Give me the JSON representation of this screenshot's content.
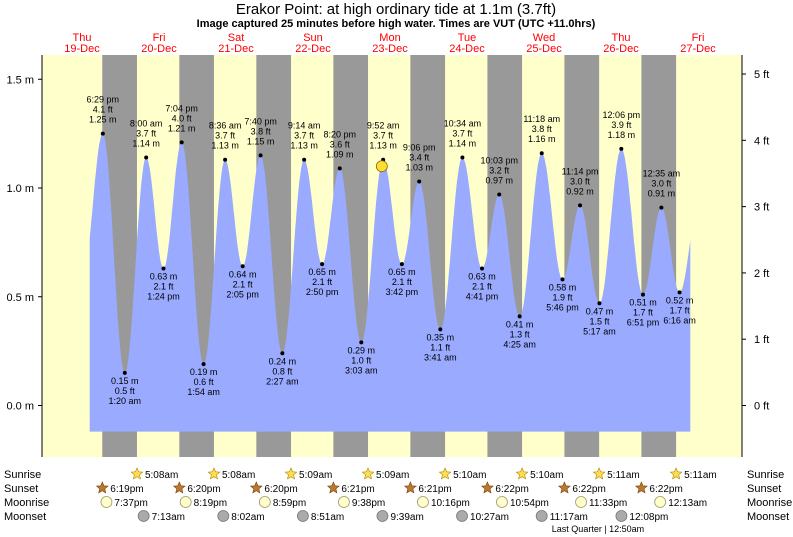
{
  "title": "Erakor Point: at high  ordinary tide at 1.1m (3.7ft)",
  "subtitle": "Image captured 25 minutes before high water. Times are VUT (UTC +11.0hrs)",
  "colors": {
    "day": "#ffffcc",
    "night": "#999999",
    "tide": "#99aaff",
    "day_label": "#ff0000",
    "current_marker": "#ffdd33"
  },
  "days": [
    {
      "name": "Thu",
      "date": "19-Dec"
    },
    {
      "name": "Fri",
      "date": "20-Dec"
    },
    {
      "name": "Sat",
      "date": "21-Dec"
    },
    {
      "name": "Sun",
      "date": "22-Dec"
    },
    {
      "name": "Mon",
      "date": "23-Dec"
    },
    {
      "name": "Tue",
      "date": "24-Dec"
    },
    {
      "name": "Wed",
      "date": "25-Dec"
    },
    {
      "name": "Thu",
      "date": "26-Dec"
    },
    {
      "name": "Fri",
      "date": "27-Dec"
    }
  ],
  "chart_data": {
    "type": "area",
    "x_unit": "days",
    "y_left": {
      "unit": "m",
      "min": -0.2,
      "max": 1.6,
      "ticks": [
        0.0,
        0.5,
        1.0,
        1.5
      ],
      "labels": [
        "0.0 m",
        "0.5 m",
        "1.0 m",
        "1.5 m"
      ]
    },
    "y_right": {
      "unit": "ft",
      "ticks": [
        0,
        1,
        2,
        3,
        4,
        5
      ],
      "labels": [
        "0 ft",
        "1 ft",
        "2 ft",
        "3 ft",
        "4 ft",
        "5 ft"
      ]
    },
    "tides": [
      {
        "day": 0,
        "time": "6:29 pm",
        "ft": "4.1 ft",
        "m": 1.25,
        "m_label": "1.25 m",
        "type": "high"
      },
      {
        "day": 1,
        "time": "1:20 am",
        "ft": "0.5 ft",
        "m": 0.15,
        "m_label": "0.15 m",
        "type": "low"
      },
      {
        "day": 1,
        "time": "8:00 am",
        "ft": "3.7 ft",
        "m": 1.14,
        "m_label": "1.14 m",
        "type": "high"
      },
      {
        "day": 1,
        "time": "1:24 pm",
        "ft": "2.1 ft",
        "m": 0.63,
        "m_label": "0.63 m",
        "type": "low"
      },
      {
        "day": 1,
        "time": "7:04 pm",
        "ft": "4.0 ft",
        "m": 1.21,
        "m_label": "1.21 m",
        "type": "high"
      },
      {
        "day": 2,
        "time": "1:54 am",
        "ft": "0.6 ft",
        "m": 0.19,
        "m_label": "0.19 m",
        "type": "low"
      },
      {
        "day": 2,
        "time": "8:36 am",
        "ft": "3.7 ft",
        "m": 1.13,
        "m_label": "1.13 m",
        "type": "high"
      },
      {
        "day": 2,
        "time": "2:05 pm",
        "ft": "2.1 ft",
        "m": 0.64,
        "m_label": "0.64 m",
        "type": "low"
      },
      {
        "day": 2,
        "time": "7:40 pm",
        "ft": "3.8 ft",
        "m": 1.15,
        "m_label": "1.15 m",
        "type": "high"
      },
      {
        "day": 3,
        "time": "2:27 am",
        "ft": "0.8 ft",
        "m": 0.24,
        "m_label": "0.24 m",
        "type": "low"
      },
      {
        "day": 3,
        "time": "9:14 am",
        "ft": "3.7 ft",
        "m": 1.13,
        "m_label": "1.13 m",
        "type": "high"
      },
      {
        "day": 3,
        "time": "2:50 pm",
        "ft": "2.1 ft",
        "m": 0.65,
        "m_label": "0.65 m",
        "type": "low"
      },
      {
        "day": 3,
        "time": "8:20 pm",
        "ft": "3.6 ft",
        "m": 1.09,
        "m_label": "1.09 m",
        "type": "high"
      },
      {
        "day": 4,
        "time": "3:03 am",
        "ft": "1.0 ft",
        "m": 0.29,
        "m_label": "0.29 m",
        "type": "low"
      },
      {
        "day": 4,
        "time": "9:52 am",
        "ft": "3.7 ft",
        "m": 1.13,
        "m_label": "1.13 m",
        "type": "high"
      },
      {
        "day": 4,
        "time": "3:42 pm",
        "ft": "2.1 ft",
        "m": 0.65,
        "m_label": "0.65 m",
        "type": "low"
      },
      {
        "day": 4,
        "time": "9:06 pm",
        "ft": "3.4 ft",
        "m": 1.03,
        "m_label": "1.03 m",
        "type": "high"
      },
      {
        "day": 5,
        "time": "3:41 am",
        "ft": "1.1 ft",
        "m": 0.35,
        "m_label": "0.35 m",
        "type": "low"
      },
      {
        "day": 5,
        "time": "10:34 am",
        "ft": "3.7 ft",
        "m": 1.14,
        "m_label": "1.14 m",
        "type": "high"
      },
      {
        "day": 5,
        "time": "4:41 pm",
        "ft": "2.1 ft",
        "m": 0.63,
        "m_label": "0.63 m",
        "type": "low"
      },
      {
        "day": 5,
        "time": "10:03 pm",
        "ft": "3.2 ft",
        "m": 0.97,
        "m_label": "0.97 m",
        "type": "high"
      },
      {
        "day": 6,
        "time": "4:25 am",
        "ft": "1.3 ft",
        "m": 0.41,
        "m_label": "0.41 m",
        "type": "low"
      },
      {
        "day": 6,
        "time": "11:18 am",
        "ft": "3.8 ft",
        "m": 1.16,
        "m_label": "1.16 m",
        "type": "high"
      },
      {
        "day": 6,
        "time": "5:46 pm",
        "ft": "1.9 ft",
        "m": 0.58,
        "m_label": "0.58 m",
        "type": "low"
      },
      {
        "day": 6,
        "time": "11:14 pm",
        "ft": "3.0 ft",
        "m": 0.92,
        "m_label": "0.92 m",
        "type": "high"
      },
      {
        "day": 7,
        "time": "5:17 am",
        "ft": "1.5 ft",
        "m": 0.47,
        "m_label": "0.47 m",
        "type": "low"
      },
      {
        "day": 7,
        "time": "12:06 pm",
        "ft": "3.9 ft",
        "m": 1.18,
        "m_label": "1.18 m",
        "type": "high"
      },
      {
        "day": 7,
        "time": "6:51 pm",
        "ft": "1.7 ft",
        "m": 0.51,
        "m_label": "0.51 m",
        "type": "low"
      },
      {
        "day": 8,
        "time": "12:35 am",
        "ft": "3.0 ft",
        "m": 0.91,
        "m_label": "0.91 m",
        "type": "high"
      },
      {
        "day": 8,
        "time": "6:16 am",
        "ft": "1.7 ft",
        "m": 0.52,
        "m_label": "0.52 m",
        "type": "low"
      }
    ],
    "current": {
      "day": 4,
      "time": "9:27 am",
      "m": 1.1
    }
  },
  "astro": {
    "labels": {
      "sunrise": "Sunrise",
      "sunset": "Sunset",
      "moonrise": "Moonrise",
      "moonset": "Moonset"
    },
    "sunrise": [
      {
        "day": 1,
        "time": "5:08am"
      },
      {
        "day": 2,
        "time": "5:08am"
      },
      {
        "day": 3,
        "time": "5:09am"
      },
      {
        "day": 4,
        "time": "5:09am"
      },
      {
        "day": 5,
        "time": "5:10am"
      },
      {
        "day": 6,
        "time": "5:10am"
      },
      {
        "day": 7,
        "time": "5:11am"
      },
      {
        "day": 8,
        "time": "5:11am"
      }
    ],
    "sunset": [
      {
        "day": 0,
        "time": "6:19pm"
      },
      {
        "day": 1,
        "time": "6:20pm"
      },
      {
        "day": 2,
        "time": "6:20pm"
      },
      {
        "day": 3,
        "time": "6:21pm"
      },
      {
        "day": 4,
        "time": "6:21pm"
      },
      {
        "day": 5,
        "time": "6:22pm"
      },
      {
        "day": 6,
        "time": "6:22pm"
      },
      {
        "day": 7,
        "time": "6:22pm"
      }
    ],
    "moonrise": [
      {
        "day": 0,
        "time": "7:37pm"
      },
      {
        "day": 1,
        "time": "8:19pm"
      },
      {
        "day": 2,
        "time": "8:59pm"
      },
      {
        "day": 3,
        "time": "9:38pm"
      },
      {
        "day": 4,
        "time": "10:16pm"
      },
      {
        "day": 5,
        "time": "10:54pm"
      },
      {
        "day": 6,
        "time": "11:33pm"
      },
      {
        "day": 8,
        "time": "12:13am"
      }
    ],
    "moonset": [
      {
        "day": 1,
        "time": "7:13am"
      },
      {
        "day": 2,
        "time": "8:02am"
      },
      {
        "day": 3,
        "time": "8:51am"
      },
      {
        "day": 4,
        "time": "9:39am"
      },
      {
        "day": 5,
        "time": "10:27am"
      },
      {
        "day": 6,
        "time": "11:17am"
      },
      {
        "day": 7,
        "time": "12:08pm"
      }
    ],
    "moon_phase": "Last Quarter | 12:50am"
  }
}
